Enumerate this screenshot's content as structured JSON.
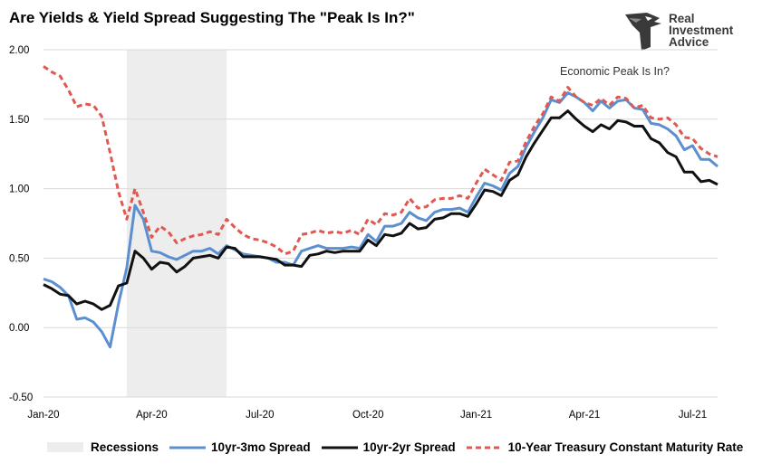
{
  "title": "Are Yields & Yield Spread Suggesting The \"Peak Is In?\"",
  "brand": {
    "line1": "Real",
    "line2": "Investment",
    "line3": "Advice",
    "color": "#3a3a3a"
  },
  "chart_data": {
    "type": "line",
    "annotation": "Economic Peak Is In?",
    "ylim": [
      -0.5,
      2.0
    ],
    "y_ticks": [
      "2.00",
      "1.50",
      "1.00",
      "0.50",
      "0.00",
      "-0.50"
    ],
    "x_ticks": [
      "Jan-20",
      "Apr-20",
      "Jul-20",
      "Oct-20",
      "Jan-21",
      "Apr-21",
      "Jul-21"
    ],
    "grid": true,
    "legend_position": "bottom",
    "recession": {
      "name": "Recessions",
      "start_week": 10,
      "end_week": 22,
      "color": "#ededed"
    },
    "series": [
      {
        "name": "10yr-3mo Spread",
        "color": "#5b8fd0",
        "style": "solid",
        "values": [
          0.35,
          0.33,
          0.29,
          0.23,
          0.06,
          0.07,
          0.04,
          -0.03,
          -0.14,
          0.17,
          0.43,
          0.88,
          0.78,
          0.55,
          0.54,
          0.51,
          0.49,
          0.52,
          0.55,
          0.55,
          0.57,
          0.53,
          0.59,
          0.56,
          0.53,
          0.52,
          0.51,
          0.5,
          0.47,
          0.47,
          0.45,
          0.55,
          0.57,
          0.59,
          0.57,
          0.57,
          0.57,
          0.58,
          0.57,
          0.67,
          0.62,
          0.73,
          0.73,
          0.75,
          0.83,
          0.79,
          0.77,
          0.83,
          0.85,
          0.85,
          0.86,
          0.83,
          0.94,
          1.04,
          1.02,
          0.99,
          1.11,
          1.16,
          1.3,
          1.41,
          1.51,
          1.64,
          1.62,
          1.69,
          1.66,
          1.62,
          1.56,
          1.63,
          1.58,
          1.63,
          1.64,
          1.58,
          1.57,
          1.47,
          1.46,
          1.43,
          1.38,
          1.28,
          1.31,
          1.21,
          1.21,
          1.16
        ]
      },
      {
        "name": "10yr-2yr Spread",
        "color": "#111111",
        "style": "solid",
        "values": [
          0.31,
          0.28,
          0.24,
          0.23,
          0.17,
          0.19,
          0.17,
          0.13,
          0.16,
          0.3,
          0.32,
          0.55,
          0.5,
          0.42,
          0.47,
          0.46,
          0.4,
          0.44,
          0.5,
          0.51,
          0.52,
          0.5,
          0.58,
          0.57,
          0.51,
          0.51,
          0.51,
          0.5,
          0.49,
          0.45,
          0.45,
          0.44,
          0.52,
          0.53,
          0.55,
          0.54,
          0.55,
          0.55,
          0.55,
          0.63,
          0.59,
          0.67,
          0.66,
          0.68,
          0.75,
          0.71,
          0.72,
          0.78,
          0.79,
          0.82,
          0.82,
          0.8,
          0.89,
          0.99,
          0.98,
          0.95,
          1.06,
          1.1,
          1.23,
          1.33,
          1.42,
          1.51,
          1.51,
          1.56,
          1.5,
          1.45,
          1.41,
          1.46,
          1.43,
          1.49,
          1.48,
          1.45,
          1.45,
          1.36,
          1.33,
          1.26,
          1.23,
          1.12,
          1.12,
          1.05,
          1.06,
          1.03
        ]
      },
      {
        "name": "10-Year Treasury Constant Maturity Rate",
        "color": "#e0584f",
        "style": "dashed",
        "values": [
          1.88,
          1.84,
          1.81,
          1.71,
          1.59,
          1.61,
          1.6,
          1.52,
          1.26,
          0.98,
          0.78,
          1.0,
          0.83,
          0.65,
          0.73,
          0.69,
          0.61,
          0.64,
          0.66,
          0.67,
          0.69,
          0.67,
          0.78,
          0.72,
          0.67,
          0.64,
          0.63,
          0.61,
          0.58,
          0.53,
          0.55,
          0.67,
          0.68,
          0.7,
          0.68,
          0.69,
          0.68,
          0.7,
          0.67,
          0.78,
          0.74,
          0.82,
          0.81,
          0.83,
          0.93,
          0.86,
          0.87,
          0.92,
          0.93,
          0.93,
          0.95,
          0.93,
          1.04,
          1.14,
          1.1,
          1.06,
          1.19,
          1.2,
          1.34,
          1.45,
          1.54,
          1.66,
          1.63,
          1.73,
          1.66,
          1.62,
          1.6,
          1.65,
          1.6,
          1.66,
          1.65,
          1.58,
          1.6,
          1.51,
          1.5,
          1.51,
          1.46,
          1.37,
          1.36,
          1.29,
          1.25,
          1.23
        ]
      }
    ]
  }
}
